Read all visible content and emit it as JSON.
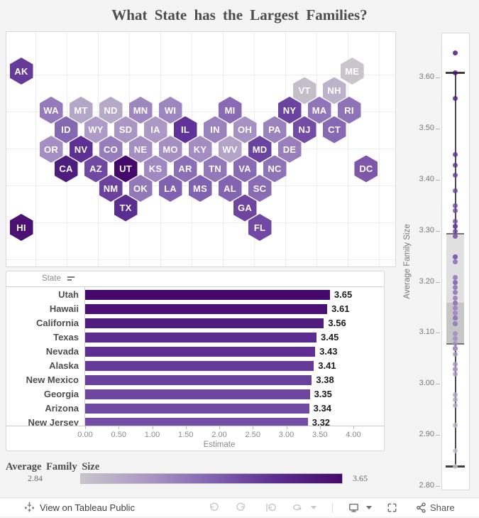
{
  "page": {
    "title": "What State has the Largest Families?",
    "background": "#f4f4f4"
  },
  "legend": {
    "title": "Average Family Size",
    "min_label": "2.84",
    "max_label": "3.65",
    "gradient": [
      "#c9c5cc",
      "#ab98c5",
      "#8263b1",
      "#5b2d90",
      "#45096b"
    ]
  },
  "toolbar": {
    "view_text": "View on Tableau Public",
    "share_label": "Share",
    "icons": [
      "tableau-logo-icon",
      "undo-icon",
      "redo-icon",
      "revert-icon",
      "refresh-icon",
      "dropdown-caret-icon",
      "download-device-icon",
      "dropdown-caret-icon",
      "fullscreen-icon",
      "share-icon"
    ]
  },
  "chart_data": [
    {
      "type": "heatmap",
      "subtype": "hex-tile-map",
      "title": "US states hex map colored by Average Family Size",
      "color_scale": {
        "min": 2.84,
        "max": 3.65,
        "min_color": "#c9c5cc",
        "max_color": "#45096b"
      },
      "states": [
        {
          "a": "AK",
          "r": 0,
          "c": 0,
          "v": 3.41,
          "color": "#653a99"
        },
        {
          "a": "ME",
          "r": 0,
          "c": 11.1,
          "v": 2.84,
          "color": "#c9c5cc"
        },
        {
          "a": "VT",
          "r": 1,
          "c": 9.5,
          "v": 2.87,
          "color": "#c4becb"
        },
        {
          "a": "NH",
          "r": 1,
          "c": 10.5,
          "v": 2.92,
          "color": "#bcb2c9"
        },
        {
          "a": "WA",
          "r": 2,
          "c": 1,
          "v": 3.15,
          "color": "#947aba"
        },
        {
          "a": "MT",
          "r": 2,
          "c": 2,
          "v": 2.97,
          "color": "#b4a6c7"
        },
        {
          "a": "ND",
          "r": 2,
          "c": 3,
          "v": 2.96,
          "color": "#b6a9c8"
        },
        {
          "a": "MN",
          "r": 2,
          "c": 4,
          "v": 3.1,
          "color": "#9e87bf"
        },
        {
          "a": "WI",
          "r": 2,
          "c": 5,
          "v": 3.03,
          "color": "#9d87c0"
        },
        {
          "a": "MI",
          "r": 2,
          "c": 7,
          "v": 3.12,
          "color": "#8a6bb3"
        },
        {
          "a": "NY",
          "r": 2,
          "c": 9,
          "v": 3.3,
          "color": "#6a42a0"
        },
        {
          "a": "MA",
          "r": 2,
          "c": 10,
          "v": 3.17,
          "color": "#9076b8"
        },
        {
          "a": "RI",
          "r": 2,
          "c": 11,
          "v": 3.13,
          "color": "#8f73b7"
        },
        {
          "a": "ID",
          "r": 3,
          "c": 1.5,
          "v": 3.19,
          "color": "#8468b2"
        },
        {
          "a": "WY",
          "r": 3,
          "c": 2.5,
          "v": 3.02,
          "color": "#ad9ac6"
        },
        {
          "a": "SD",
          "r": 3,
          "c": 3.5,
          "v": 3.04,
          "color": "#a996c5"
        },
        {
          "a": "IA",
          "r": 3,
          "c": 4.5,
          "v": 3.03,
          "color": "#ab98c5"
        },
        {
          "a": "IL",
          "r": 3,
          "c": 5.5,
          "v": 3.31,
          "color": "#5f3399"
        },
        {
          "a": "IN",
          "r": 3,
          "c": 6.5,
          "v": 3.12,
          "color": "#9a82bd"
        },
        {
          "a": "OH",
          "r": 3,
          "c": 7.5,
          "v": 3.06,
          "color": "#a691c3"
        },
        {
          "a": "PA",
          "r": 3,
          "c": 8.5,
          "v": 3.12,
          "color": "#9a82bd"
        },
        {
          "a": "NJ",
          "r": 3,
          "c": 9.5,
          "v": 3.32,
          "color": "#744ca5"
        },
        {
          "a": "CT",
          "r": 3,
          "c": 10.5,
          "v": 3.18,
          "color": "#8769b3"
        },
        {
          "a": "OR",
          "r": 4,
          "c": 1,
          "v": 3.07,
          "color": "#a48ec2"
        },
        {
          "a": "NV",
          "r": 4,
          "c": 2,
          "v": 3.43,
          "color": "#5e3093"
        },
        {
          "a": "CO",
          "r": 4,
          "c": 3,
          "v": 3.14,
          "color": "#967dbb"
        },
        {
          "a": "NE",
          "r": 4,
          "c": 4,
          "v": 3.07,
          "color": "#a48ec2"
        },
        {
          "a": "MO",
          "r": 4,
          "c": 5,
          "v": 3.07,
          "color": "#a48ec2"
        },
        {
          "a": "KY",
          "r": 4,
          "c": 6,
          "v": 3.08,
          "color": "#a28cc1"
        },
        {
          "a": "WV",
          "r": 4,
          "c": 7,
          "v": 2.98,
          "color": "#b3a4c7"
        },
        {
          "a": "MD",
          "r": 4,
          "c": 8,
          "v": 3.31,
          "color": "#6a42a0"
        },
        {
          "a": "DE",
          "r": 4,
          "c": 9,
          "v": 3.13,
          "color": "#987fbc"
        },
        {
          "a": "CA",
          "r": 5,
          "c": 1.5,
          "v": 3.56,
          "color": "#4f1d7e"
        },
        {
          "a": "AZ",
          "r": 5,
          "c": 2.5,
          "v": 3.34,
          "color": "#7049a2"
        },
        {
          "a": "UT",
          "r": 5,
          "c": 3.5,
          "v": 3.65,
          "color": "#45096b"
        },
        {
          "a": "KS",
          "r": 5,
          "c": 4.5,
          "v": 3.09,
          "color": "#a089c0"
        },
        {
          "a": "AR",
          "r": 5,
          "c": 5.5,
          "v": 3.2,
          "color": "#8b6eb5"
        },
        {
          "a": "TN",
          "r": 5,
          "c": 6.5,
          "v": 3.13,
          "color": "#9278b9"
        },
        {
          "a": "VA",
          "r": 5,
          "c": 7.5,
          "v": 3.2,
          "color": "#886bb4"
        },
        {
          "a": "NC",
          "r": 5,
          "c": 8.5,
          "v": 3.16,
          "color": "#8f73b7"
        },
        {
          "a": "DC",
          "r": 5,
          "c": 11.57,
          "v": 3.25,
          "color": "#7e57ab"
        },
        {
          "a": "NM",
          "r": 6,
          "c": 3,
          "v": 3.38,
          "color": "#6a419c"
        },
        {
          "a": "OK",
          "r": 6,
          "c": 4,
          "v": 3.16,
          "color": "#9278b9"
        },
        {
          "a": "LA",
          "r": 6,
          "c": 5,
          "v": 3.25,
          "color": "#8162b0"
        },
        {
          "a": "MS",
          "r": 6,
          "c": 6,
          "v": 3.25,
          "color": "#8162b0"
        },
        {
          "a": "AL",
          "r": 6,
          "c": 7,
          "v": 3.24,
          "color": "#8364b1"
        },
        {
          "a": "SC",
          "r": 6,
          "c": 8,
          "v": 3.21,
          "color": "#8a6cb4"
        },
        {
          "a": "TX",
          "r": 7,
          "c": 3.5,
          "v": 3.45,
          "color": "#5b2d90"
        },
        {
          "a": "GA",
          "r": 7,
          "c": 7.5,
          "v": 3.35,
          "color": "#6e459f"
        },
        {
          "a": "HI",
          "r": 8,
          "c": 0,
          "v": 3.61,
          "color": "#4a1173"
        },
        {
          "a": "FL",
          "r": 8,
          "c": 8,
          "v": 3.29,
          "color": "#7149a4"
        }
      ]
    },
    {
      "type": "bar",
      "orientation": "horizontal",
      "header_label": "State",
      "sort": "descending",
      "categories": [
        "Utah",
        "Hawaii",
        "California",
        "Texas",
        "Nevada",
        "Alaska",
        "New Mexico",
        "Georgia",
        "Arizona",
        "New Jersey"
      ],
      "values": [
        3.65,
        3.61,
        3.56,
        3.45,
        3.43,
        3.41,
        3.38,
        3.35,
        3.34,
        3.32
      ],
      "labels": [
        "3.65",
        "3.61",
        "3.56",
        "3.45",
        "3.43",
        "3.41",
        "3.38",
        "3.35",
        "3.34",
        "3.32"
      ],
      "colors": [
        "#45096b",
        "#4a1173",
        "#4f1d7e",
        "#5b2d90",
        "#5e3093",
        "#653a99",
        "#6a419c",
        "#6e459f",
        "#7049a2",
        "#744ca5"
      ],
      "xlabel": "Estimate",
      "xlim": [
        0,
        4
      ],
      "xticks": [
        "0.00",
        "0.50",
        "1.00",
        "1.50",
        "2.00",
        "2.50",
        "3.00",
        "3.50",
        "4.00"
      ],
      "xtick_values": [
        0,
        0.5,
        1,
        1.5,
        2,
        2.5,
        3,
        3.5,
        4
      ]
    },
    {
      "type": "boxplot",
      "ylabel": "Average Family Size",
      "ylim": [
        2.8,
        3.69
      ],
      "yticks": [
        "3.60",
        "3.50",
        "3.40",
        "3.30",
        "3.20",
        "3.10",
        "3.00",
        "2.90",
        "2.80"
      ],
      "ytick_values": [
        3.6,
        3.5,
        3.4,
        3.3,
        3.2,
        3.1,
        3.0,
        2.9,
        2.8
      ],
      "stats": {
        "whisker_low": 2.84,
        "q1": 3.08,
        "median": 3.16,
        "q3": 3.295,
        "whisker_high": 3.61,
        "outliers": [
          3.65
        ]
      },
      "points": [
        3.41,
        2.84,
        2.87,
        2.92,
        3.15,
        2.97,
        2.96,
        3.1,
        3.03,
        3.12,
        3.3,
        3.17,
        3.13,
        3.19,
        3.02,
        3.04,
        3.03,
        3.31,
        3.12,
        3.06,
        3.12,
        3.32,
        3.18,
        3.07,
        3.43,
        3.14,
        3.07,
        3.07,
        3.08,
        2.98,
        3.31,
        3.13,
        3.56,
        3.34,
        3.65,
        3.09,
        3.2,
        3.13,
        3.2,
        3.16,
        3.25,
        3.38,
        3.16,
        3.25,
        3.25,
        3.24,
        3.21,
        3.45,
        3.35,
        3.61,
        3.29
      ]
    }
  ]
}
